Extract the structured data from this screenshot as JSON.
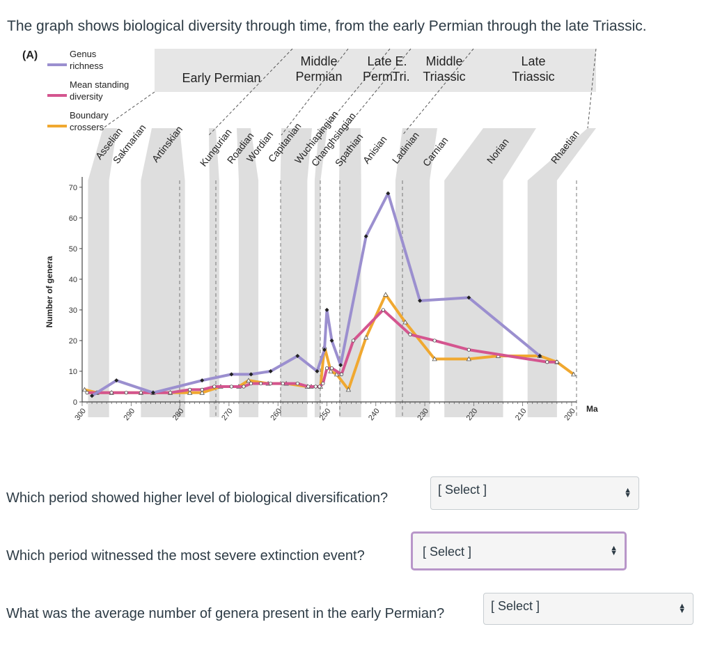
{
  "intro": "The graph shows biological diversity through time, from the early Permian through the late Triassic.",
  "figure": {
    "panel_label": "(A)",
    "legend": [
      {
        "label_lines": [
          "Genus",
          "richness"
        ],
        "color": "#9b8fcf"
      },
      {
        "label_lines": [
          "Mean standing",
          "diversity"
        ],
        "color": "#d4558f"
      },
      {
        "label_lines": [
          "Boundary",
          "crossers"
        ],
        "color": "#f0a830"
      }
    ],
    "periods": [
      {
        "lines": [
          "Early Permian"
        ]
      },
      {
        "lines": [
          "Middle",
          "Permian"
        ]
      },
      {
        "lines": [
          "Late",
          "Perm."
        ]
      },
      {
        "lines": [
          "E.",
          "Tri."
        ]
      },
      {
        "lines": [
          "Middle",
          "Triassic"
        ]
      },
      {
        "lines": [
          "Late",
          "Triassic"
        ]
      }
    ],
    "stages": [
      "Asselian",
      "Sakmarian",
      "Artinskian",
      "Kungurian",
      "Roadian",
      "Wordian",
      "Capitanian",
      "Wuchiapingian",
      "Changhsingian",
      "Spathian",
      "Anisian",
      "Ladinian",
      "Carnian",
      "Norian",
      "Rhaetian"
    ],
    "y_axis_label": "Number of genera",
    "x_unit": "Ma",
    "y_ticks": [
      "0",
      "10",
      "20",
      "30",
      "40",
      "50",
      "60",
      "70"
    ],
    "x_ticks": [
      "300",
      "290",
      "280",
      "270",
      "260",
      "250",
      "240",
      "230",
      "220",
      "210",
      "200"
    ]
  },
  "chart_data": {
    "type": "line",
    "xlabel": "Ma",
    "ylabel": "Number of genera",
    "xlim": [
      300,
      199
    ],
    "ylim": [
      0,
      72
    ],
    "series": [
      {
        "name": "Genus richness",
        "color": "#9b8fcf",
        "x": [
          298,
          293,
          285.5,
          275.5,
          269.5,
          265.5,
          261.5,
          256,
          252,
          250.5,
          250,
          249,
          247.2,
          242,
          237.5,
          231,
          221,
          206.5
        ],
        "y": [
          2,
          7,
          3,
          7,
          9,
          9,
          10,
          15,
          10,
          17,
          30,
          20,
          12,
          54,
          68,
          33,
          34,
          15
        ]
      },
      {
        "name": "Mean standing diversity",
        "color": "#d4558f",
        "x": [
          299,
          297,
          294,
          291,
          288,
          285.5,
          282,
          278,
          275.5,
          273,
          269.5,
          267,
          265.5,
          263.5,
          261.5,
          259,
          256,
          253.8,
          252.3,
          251.5,
          250.8,
          250,
          249,
          247,
          244.6,
          238.5,
          233,
          228,
          221,
          205,
          203
        ],
        "y": [
          3,
          3,
          3,
          3,
          3,
          3,
          3,
          4,
          4,
          5,
          5,
          5,
          6,
          6,
          6,
          6,
          6,
          5,
          5,
          5,
          6,
          11,
          11,
          9,
          20,
          30,
          22,
          20,
          17,
          13,
          13
        ]
      },
      {
        "name": "Boundary crossers",
        "color": "#f0a830",
        "x": [
          299.5,
          297,
          294,
          288,
          285.5,
          282,
          278,
          275.5,
          271.7,
          268,
          266,
          262,
          258.3,
          254,
          253.2,
          251.3,
          250.5,
          249.2,
          248,
          245.6,
          242,
          238,
          234,
          228,
          221,
          215,
          206.5,
          203,
          199.6
        ],
        "y": [
          4,
          3,
          3,
          3,
          3,
          3,
          3,
          3,
          5,
          5,
          7,
          6,
          6,
          5,
          5,
          5,
          18,
          10,
          9,
          4,
          21,
          35,
          26,
          14,
          14,
          15,
          15,
          13,
          9
        ]
      }
    ]
  },
  "questions": [
    {
      "text": "Which period showed higher level of biological diversification?",
      "select": "[ Select ]"
    },
    {
      "text": "Which period witnessed the most severe extinction event?",
      "select": "[ Select ]"
    },
    {
      "text": "What was the average number of genera present in the early Permian?",
      "select": "[ Select ]"
    }
  ]
}
